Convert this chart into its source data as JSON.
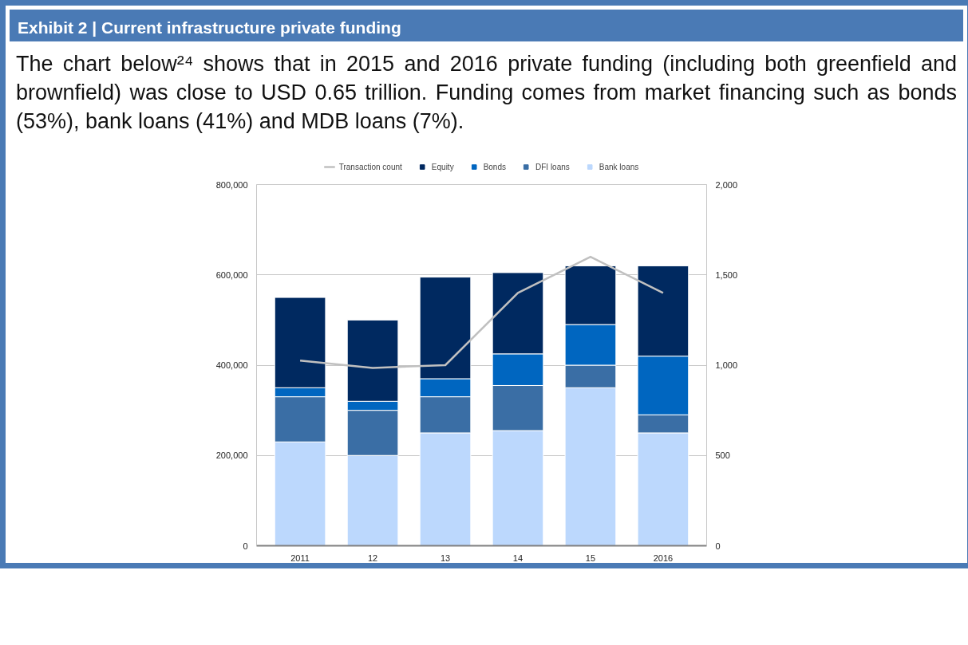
{
  "chart_data": {
    "type": "bar",
    "title": "Exhibit 2 | Current infrastructure private funding",
    "subtitle": "The chart below²⁴ shows that in 2015 and 2016 private funding (including both greenfield and brownfield) was close to USD 0.65 trillion. Funding comes from market financing such as bonds (53%), bank loans (41%) and MDB loans (7%).",
    "categories": [
      "2011",
      "12",
      "13",
      "14",
      "15",
      "2016"
    ],
    "stacked": true,
    "series": [
      {
        "name": "Bank loans",
        "color": "#bcd8fd",
        "values": [
          230000,
          200000,
          250000,
          255000,
          350000,
          250000
        ]
      },
      {
        "name": "DFI loans",
        "color": "#3a6ea5",
        "values": [
          100000,
          100000,
          80000,
          100000,
          50000,
          40000
        ]
      },
      {
        "name": "Bonds",
        "color": "#0066c0",
        "values": [
          20000,
          20000,
          40000,
          70000,
          90000,
          130000
        ]
      },
      {
        "name": "Equity",
        "color": "#002960",
        "values": [
          200000,
          180000,
          225000,
          180000,
          130000,
          200000
        ]
      },
      {
        "name": "Transaction count",
        "type": "line",
        "axis": "y2",
        "color": "#c0c0c0",
        "values": [
          1025,
          985,
          1000,
          1400,
          1600,
          1400
        ]
      }
    ],
    "ylim": [
      0,
      800000
    ],
    "yticks": [
      0,
      {
        "value": 200000,
        "label": "200,000"
      },
      {
        "value": 400000,
        "label": "400,000"
      },
      {
        "value": 600000,
        "label": "600,000"
      },
      {
        "value": 800000,
        "label": "800,000"
      }
    ],
    "y2lim": [
      0,
      2000
    ],
    "y2ticks": [
      0,
      500,
      {
        "value": 1000,
        "label": "1,000"
      },
      {
        "value": 1500,
        "label": "1,500"
      },
      {
        "value": 2000,
        "label": "2,000"
      }
    ],
    "grid": "y",
    "legend": "top"
  }
}
